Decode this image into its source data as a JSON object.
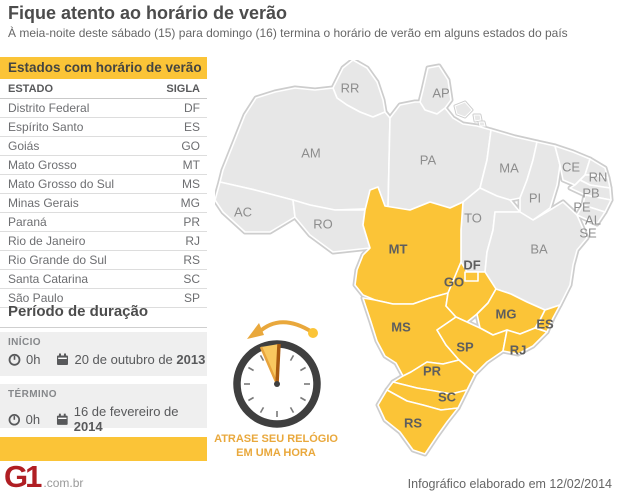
{
  "header": {
    "title": "Fique atento ao horário de verão",
    "subtitle": "À meia-noite deste sábado (15) para domingo (16) termina o horário de verão em alguns estados do país"
  },
  "states_table": {
    "title": "Estados com horário de verão",
    "columns": [
      "ESTADO",
      "SIGLA"
    ],
    "rows": [
      [
        "Distrito Federal",
        "DF"
      ],
      [
        "Espírito Santo",
        "ES"
      ],
      [
        "Goiás",
        "GO"
      ],
      [
        "Mato Grosso",
        "MT"
      ],
      [
        "Mato Grosso do Sul",
        "MS"
      ],
      [
        "Minas Gerais",
        "MG"
      ],
      [
        "Paraná",
        "PR"
      ],
      [
        "Rio de Janeiro",
        "RJ"
      ],
      [
        "Rio Grande do Sul",
        "RS"
      ],
      [
        "Santa Catarina",
        "SC"
      ],
      [
        "São Paulo",
        "SP"
      ]
    ]
  },
  "duration": {
    "title": "Período de duração",
    "start": {
      "label": "INÍCIO",
      "time": "0h",
      "date_prefix": "20 de outubro de ",
      "date_year": "2013"
    },
    "end": {
      "label": "TÉRMINO",
      "time": "0h",
      "date_prefix": "16 de fevereiro de ",
      "date_year": "2014"
    }
  },
  "clock_note": {
    "line1": "ATRASE SEU RELÓGIO",
    "line2": "EM UMA HORA"
  },
  "map": {
    "states": [
      {
        "id": "RR",
        "label": "RR",
        "highlighted": false
      },
      {
        "id": "AP",
        "label": "AP",
        "highlighted": false
      },
      {
        "id": "AM",
        "label": "AM",
        "highlighted": false
      },
      {
        "id": "PA",
        "label": "PA",
        "highlighted": false
      },
      {
        "id": "MA",
        "label": "MA",
        "highlighted": false
      },
      {
        "id": "PI",
        "label": "PI",
        "highlighted": false
      },
      {
        "id": "CE",
        "label": "CE",
        "highlighted": false
      },
      {
        "id": "RN",
        "label": "RN",
        "highlighted": false
      },
      {
        "id": "PB",
        "label": "PB",
        "highlighted": false
      },
      {
        "id": "PE",
        "label": "PE",
        "highlighted": false
      },
      {
        "id": "AL",
        "label": "AL",
        "highlighted": false
      },
      {
        "id": "SE",
        "label": "SE",
        "highlighted": false
      },
      {
        "id": "AC",
        "label": "AC",
        "highlighted": false
      },
      {
        "id": "RO",
        "label": "RO",
        "highlighted": false
      },
      {
        "id": "TO",
        "label": "TO",
        "highlighted": false
      },
      {
        "id": "BA",
        "label": "BA",
        "highlighted": false
      },
      {
        "id": "MT",
        "label": "MT",
        "highlighted": true
      },
      {
        "id": "MS",
        "label": "MS",
        "highlighted": true
      },
      {
        "id": "GO",
        "label": "GO",
        "highlighted": true
      },
      {
        "id": "DF",
        "label": "DF",
        "highlighted": true
      },
      {
        "id": "MG",
        "label": "MG",
        "highlighted": true
      },
      {
        "id": "ES",
        "label": "ES",
        "highlighted": true
      },
      {
        "id": "SP",
        "label": "SP",
        "highlighted": true
      },
      {
        "id": "RJ",
        "label": "RJ",
        "highlighted": true
      },
      {
        "id": "PR",
        "label": "PR",
        "highlighted": true
      },
      {
        "id": "SC",
        "label": "SC",
        "highlighted": true
      },
      {
        "id": "RS",
        "label": "RS",
        "highlighted": true
      }
    ]
  },
  "footer": {
    "logo": "G1",
    "logo_suffix": ".com.br",
    "credit": "Infográfico elaborado em 12/02/2014"
  },
  "colors": {
    "accent_yellow": "#FBC437",
    "state_gray": "#E7E7E7",
    "map_outline": "#CDCDCD",
    "note_orange": "#E9A83C",
    "logo_red": "#B01E23",
    "clock_ring": "#3F3F3F",
    "wedge_fill": "#F9C85F",
    "hand_dark": "#A85A0F"
  }
}
